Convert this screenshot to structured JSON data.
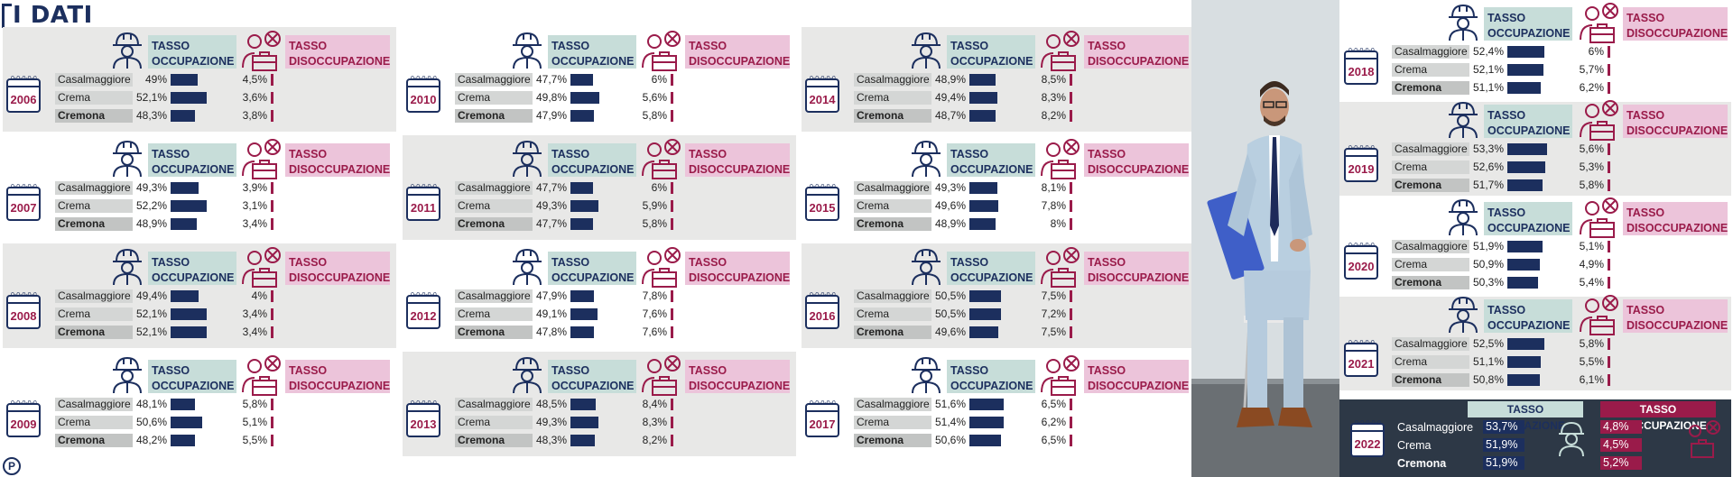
{
  "title": "I DATI",
  "labels": {
    "tasso": "TASSO",
    "occupazione": "OCCUPAZIONE",
    "disoccupazione": "DISOCCUPAZIONE",
    "tasso_occupazione": "TASSO OCCUPAZIONE",
    "tasso_disoccupazione": "TASSO DISOCCUPAZIONE",
    "calendar_rings": "0-0-0-0-0"
  },
  "colors": {
    "navy": "#1c2f5e",
    "crimson": "#9a1b4a",
    "mint": "#c7ddd9",
    "pink": "#ecc4da"
  },
  "cities": [
    "Casalmaggiore",
    "Crema",
    "Cremona"
  ],
  "years": [
    {
      "year": "2006",
      "occ": [
        "49%",
        "52,1%",
        "48,3%"
      ],
      "dis": [
        "4,5%",
        "3,6%",
        "3,8%"
      ]
    },
    {
      "year": "2007",
      "occ": [
        "49,3%",
        "52,2%",
        "48,9%"
      ],
      "dis": [
        "3,9%",
        "3,1%",
        "3,4%"
      ]
    },
    {
      "year": "2008",
      "occ": [
        "49,4%",
        "52,1%",
        "52,1%"
      ],
      "dis": [
        "4%",
        "3,4%",
        "3,4%"
      ]
    },
    {
      "year": "2009",
      "occ": [
        "48,1%",
        "50,6%",
        "48,2%"
      ],
      "dis": [
        "5,8%",
        "5,1%",
        "5,5%"
      ]
    },
    {
      "year": "2010",
      "occ": [
        "47,7%",
        "49,8%",
        "47,9%"
      ],
      "dis": [
        "6%",
        "5,6%",
        "5,8%"
      ]
    },
    {
      "year": "2011",
      "occ": [
        "47,7%",
        "49,3%",
        "47,7%"
      ],
      "dis": [
        "6%",
        "5,9%",
        "5,8%"
      ]
    },
    {
      "year": "2012",
      "occ": [
        "47,9%",
        "49,1%",
        "47,8%"
      ],
      "dis": [
        "7,8%",
        "7,6%",
        "7,6%"
      ]
    },
    {
      "year": "2013",
      "occ": [
        "48,5%",
        "49,3%",
        "48,3%"
      ],
      "dis": [
        "8,4%",
        "8,3%",
        "8,2%"
      ]
    },
    {
      "year": "2014",
      "occ": [
        "48,9%",
        "49,4%",
        "48,7%"
      ],
      "dis": [
        "8,5%",
        "8,3%",
        "8,2%"
      ]
    },
    {
      "year": "2015",
      "occ": [
        "49,3%",
        "49,6%",
        "48,9%"
      ],
      "dis": [
        "8,1%",
        "7,8%",
        "8%"
      ]
    },
    {
      "year": "2016",
      "occ": [
        "50,5%",
        "50,5%",
        "49,6%"
      ],
      "dis": [
        "7,5%",
        "7,2%",
        "7,5%"
      ]
    },
    {
      "year": "2017",
      "occ": [
        "51,6%",
        "51,4%",
        "50,6%"
      ],
      "dis": [
        "6,5%",
        "6,2%",
        "6,5%"
      ]
    },
    {
      "year": "2018",
      "occ": [
        "52,4%",
        "52,1%",
        "51,1%"
      ],
      "dis": [
        "6%",
        "5,7%",
        "6,2%"
      ]
    },
    {
      "year": "2019",
      "occ": [
        "53,3%",
        "52,6%",
        "51,7%"
      ],
      "dis": [
        "5,6%",
        "5,3%",
        "5,8%"
      ]
    },
    {
      "year": "2020",
      "occ": [
        "51,9%",
        "50,9%",
        "50,3%"
      ],
      "dis": [
        "5,1%",
        "4,9%",
        "5,4%"
      ]
    },
    {
      "year": "2021",
      "occ": [
        "52,5%",
        "51,1%",
        "50,8%"
      ],
      "dis": [
        "5,8%",
        "5,5%",
        "6,1%"
      ]
    }
  ],
  "year_2022": {
    "year": "2022",
    "occ": [
      "53,7%",
      "51,9%",
      "51,9%"
    ],
    "dis": [
      "4,8%",
      "4,5%",
      "5,2%"
    ]
  },
  "icons": {
    "worker": "worker-helmet-icon",
    "unemployed": "unemployed-briefcase-icon",
    "calendar": "calendar-icon",
    "logo": "publisher-logo-icon"
  },
  "logo_letter": "P"
}
